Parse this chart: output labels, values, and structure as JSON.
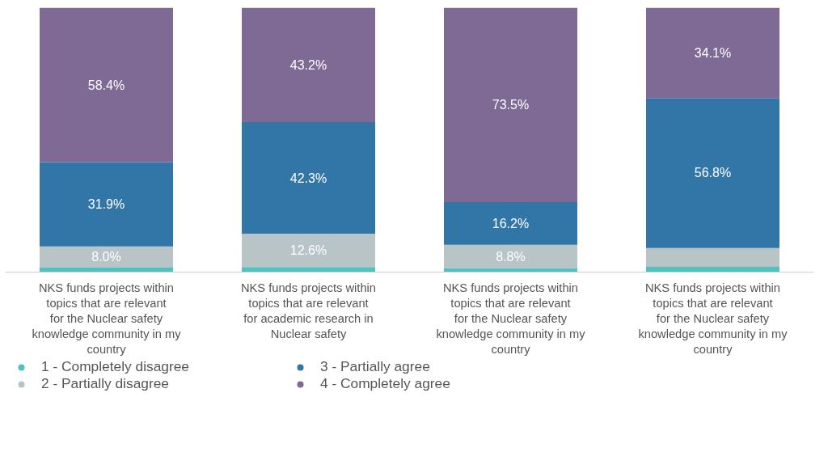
{
  "chart_data": {
    "type": "bar",
    "stacked": true,
    "categories": [
      "NKS funds projects within topics that are relevant for the Nuclear safety knowledge community in my country",
      "NKS funds projects within topics that are relevant for academic research in Nuclear safety",
      "NKS funds projects within topics that are relevant for the Nuclear safety knowledge community in my country",
      "NKS funds projects within topics that are relevant for the Nuclear safety knowledge community in my country"
    ],
    "series": [
      {
        "name": "1 - Completely disagree",
        "color": "#4fc1be",
        "values": [
          1.7,
          1.9,
          1.5,
          2.0
        ],
        "value_labels": [
          null,
          null,
          null,
          null
        ]
      },
      {
        "name": "2 - Partially disagree",
        "color": "#b8c4c6",
        "values": [
          8.0,
          12.6,
          8.8,
          7.1
        ],
        "value_labels": [
          "8.0%",
          "12.6%",
          "8.8%",
          null
        ]
      },
      {
        "name": "3 - Partially agree",
        "color": "#3276a8",
        "values": [
          31.9,
          42.3,
          16.2,
          56.8
        ],
        "value_labels": [
          "31.9%",
          "42.3%",
          "16.2%",
          "56.8%"
        ]
      },
      {
        "name": "4 - Completely agree",
        "color": "#7f6a96",
        "values": [
          58.4,
          43.2,
          73.5,
          34.1
        ],
        "value_labels": [
          "58.4%",
          "43.2%",
          "73.5%",
          "34.1%"
        ]
      }
    ],
    "tick_labels": "x",
    "legend": "bottom",
    "marker": "circle"
  }
}
